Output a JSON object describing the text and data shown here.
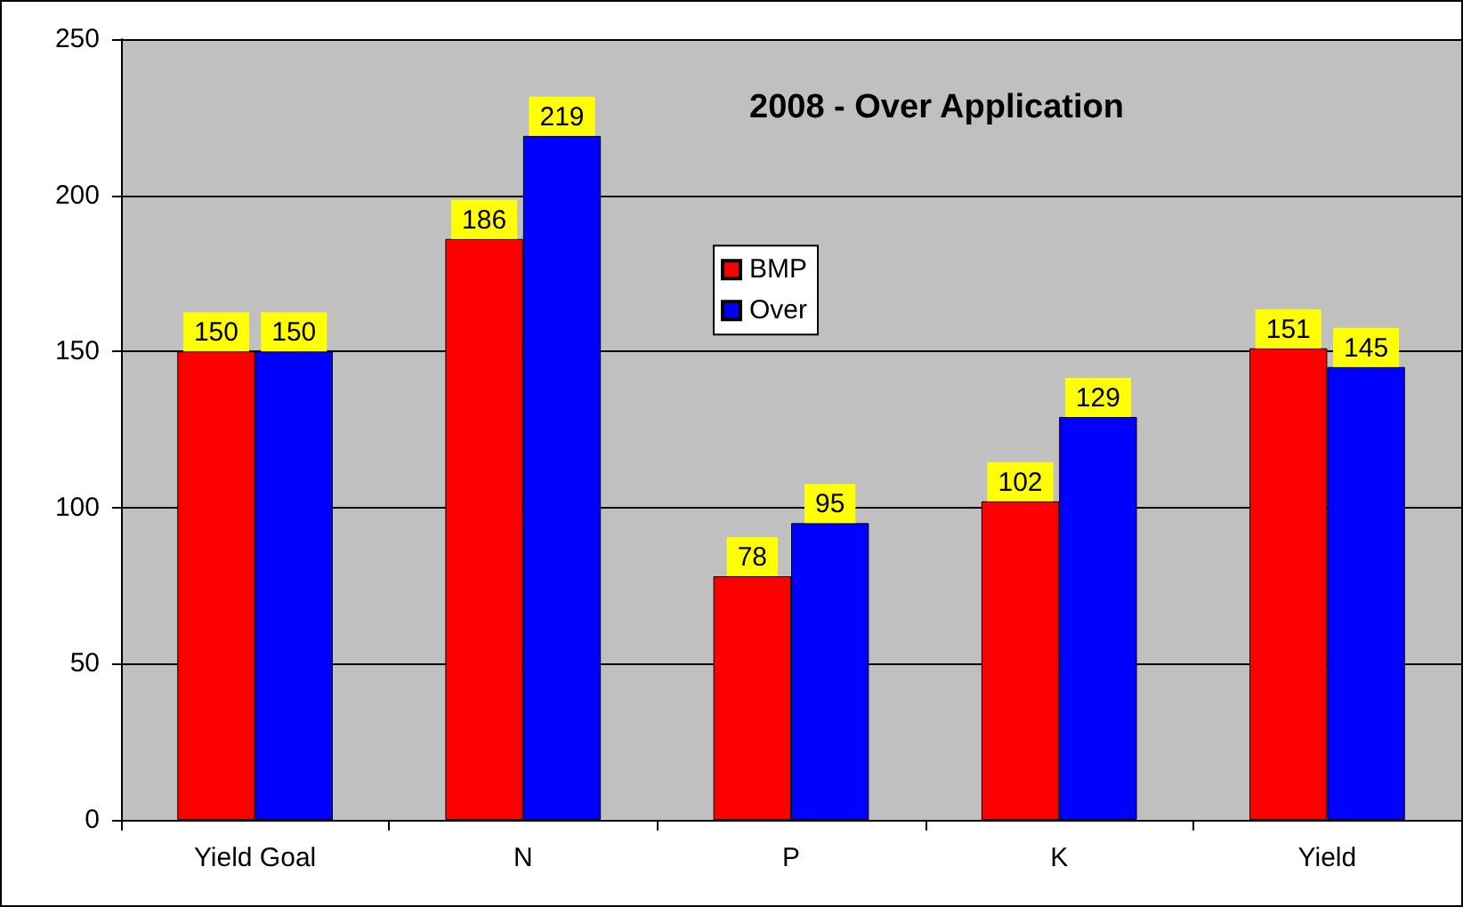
{
  "chart_data": {
    "type": "bar",
    "title": "2008 - Over Application",
    "categories": [
      "Yield Goal",
      "N",
      "P",
      "K",
      "Yield"
    ],
    "series": [
      {
        "name": "BMP",
        "color": "#ff0000",
        "values": [
          150,
          186,
          78,
          102,
          151
        ]
      },
      {
        "name": "Over",
        "color": "#0000ff",
        "values": [
          150,
          219,
          95,
          129,
          145
        ]
      }
    ],
    "ylim": [
      0,
      250
    ],
    "yticks": [
      0,
      50,
      100,
      150,
      200,
      250
    ],
    "grid": "y",
    "legend": "top",
    "data_labels": true
  }
}
